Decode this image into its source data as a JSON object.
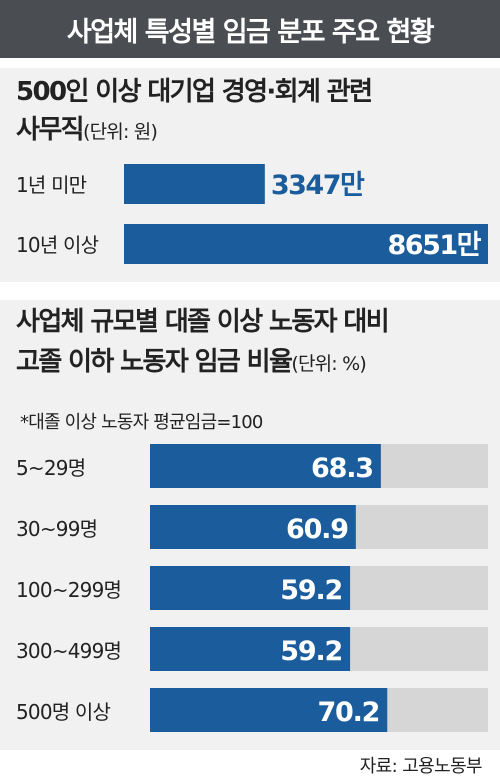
{
  "title": "사업체 특성별 임금 분포 주요 현황",
  "source": "자료: 고용노동부",
  "colors": {
    "bar": "#1a5c9c",
    "track": "#d6d6d6",
    "title_bg": "#4a4d52"
  },
  "chart_data": [
    {
      "type": "bar",
      "orientation": "horizontal",
      "title_line1": "500인 이상 대기업 경영·회계 관련",
      "title_line2": "사무직",
      "unit": "(단위: 원)",
      "categories": [
        "1년 미만",
        "10년 이상"
      ],
      "values": [
        3347,
        8651
      ],
      "value_labels": [
        "3347만",
        "8651만"
      ],
      "xlim": [
        0,
        8651
      ]
    },
    {
      "type": "bar",
      "orientation": "horizontal",
      "title_line1": "사업체 규모별 대졸 이상 노동자 대비",
      "title_line2": "고졸 이하 노동자 임금 비율",
      "unit": "(단위: %)",
      "note": "*대졸 이상 노동자 평균임금=100",
      "categories": [
        "5~29명",
        "30~99명",
        "100~299명",
        "300~499명",
        "500명 이상"
      ],
      "values": [
        68.3,
        60.9,
        59.2,
        59.2,
        70.2
      ],
      "value_labels": [
        "68.3",
        "60.9",
        "59.2",
        "59.2",
        "70.2"
      ],
      "xlim": [
        0,
        100
      ]
    }
  ]
}
